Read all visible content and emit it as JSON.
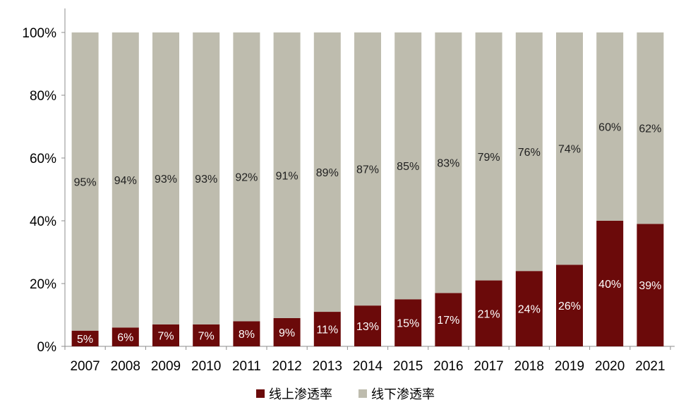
{
  "chart_data": {
    "type": "bar",
    "stacked": true,
    "categories": [
      "2007",
      "2008",
      "2009",
      "2010",
      "2011",
      "2012",
      "2013",
      "2014",
      "2015",
      "2016",
      "2017",
      "2018",
      "2019",
      "2020",
      "2021"
    ],
    "series": [
      {
        "name": "线上渗透率",
        "color": "#6b0a0a",
        "values": [
          5,
          6,
          7,
          7,
          8,
          9,
          11,
          13,
          15,
          17,
          21,
          24,
          26,
          40,
          39
        ],
        "labels": [
          "5%",
          "6%",
          "7%",
          "7%",
          "8%",
          "9%",
          "11%",
          "13%",
          "15%",
          "17%",
          "21%",
          "24%",
          "26%",
          "40%",
          "39%"
        ]
      },
      {
        "name": "线下渗透率",
        "color": "#bebcae",
        "values": [
          95,
          94,
          93,
          93,
          92,
          91,
          89,
          87,
          85,
          83,
          79,
          76,
          74,
          60,
          62
        ],
        "labels": [
          "95%",
          "94%",
          "93%",
          "93%",
          "92%",
          "91%",
          "89%",
          "87%",
          "85%",
          "83%",
          "79%",
          "76%",
          "74%",
          "60%",
          "62%"
        ]
      }
    ],
    "y_ticks": [
      "0%",
      "20%",
      "40%",
      "60%",
      "80%",
      "100%"
    ],
    "ylim": [
      0,
      100
    ],
    "legend_position": "bottom",
    "title": "",
    "xlabel": "",
    "ylabel": ""
  }
}
